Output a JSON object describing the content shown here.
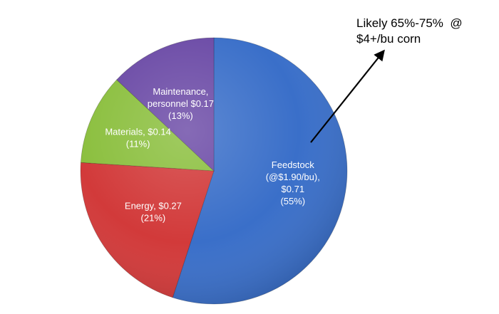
{
  "chart_data": {
    "type": "pie",
    "title": "",
    "slices": [
      {
        "label_lines": [
          "Feedstock",
          "(@$1.90/bu),",
          "$0.71",
          "(55%)"
        ],
        "category": "Feedstock (@$1.90/bu)",
        "value": 0.71,
        "percent": 55,
        "color": "#3a6fc9"
      },
      {
        "label_lines": [
          "Energy, $0.27",
          "(21%)"
        ],
        "category": "Energy",
        "value": 0.27,
        "percent": 21,
        "color": "#d23a3a"
      },
      {
        "label_lines": [
          "Materials, $0.14",
          "(11%)"
        ],
        "category": "Materials",
        "value": 0.14,
        "percent": 11,
        "color": "#8bbf3e"
      },
      {
        "label_lines": [
          "Maintenance,",
          "personnel $0.17",
          "(13%)"
        ],
        "category": "Maintenance, personnel",
        "value": 0.17,
        "percent": 13,
        "color": "#6b4aa6"
      }
    ],
    "start_angle_deg": 0,
    "direction": "clockwise",
    "legend": "none",
    "annotation": {
      "lines": [
        "Likely 65%-75%  @",
        "$4+/bu corn"
      ],
      "arrow": true,
      "points_from": "Feedstock"
    }
  }
}
